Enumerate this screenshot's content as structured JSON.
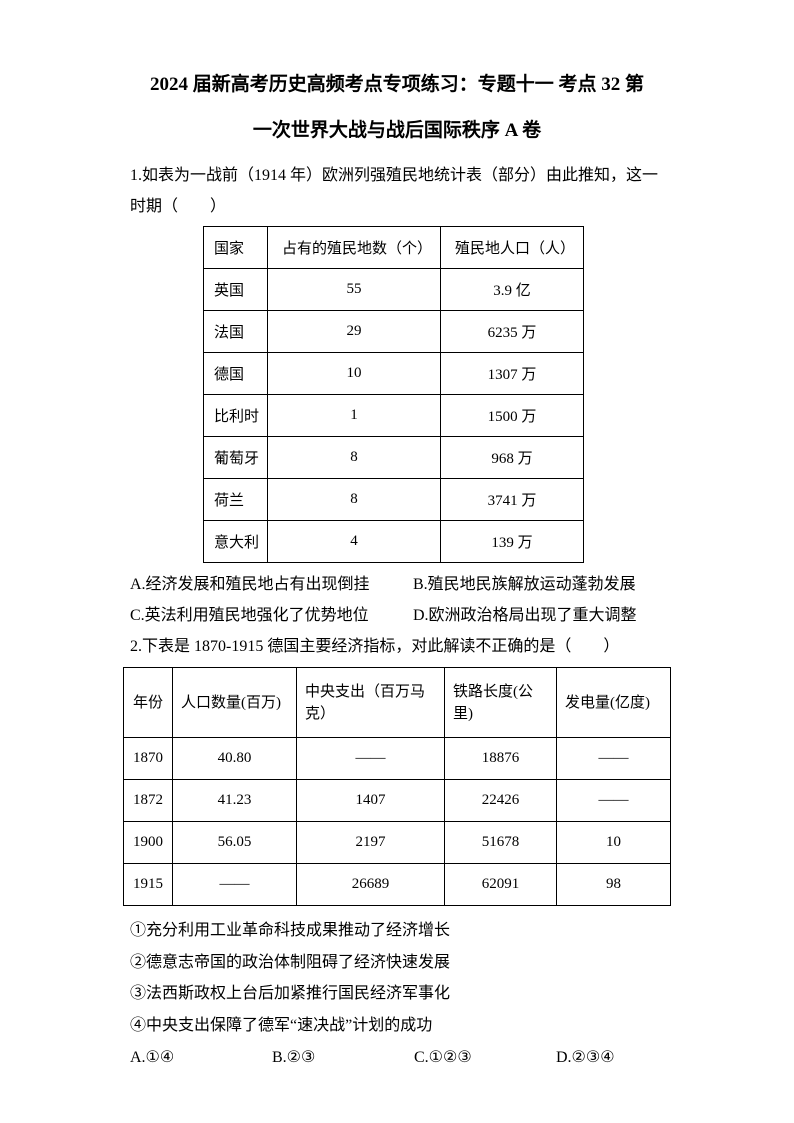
{
  "title": {
    "line1": "2024 届新高考历史高频考点专项练习：专题十一 考点 32 第",
    "line2": "一次世界大战与战后国际秩序 A 卷"
  },
  "q1": {
    "text_line1": "1.如表为一战前（1914 年）欧洲列强殖民地统计表（部分）由此推知，这一",
    "text_line2": "时期（　　）",
    "table": {
      "headers": [
        "国家",
        "占有的殖民地数（个）",
        "殖民地人口（人）"
      ],
      "rows": [
        [
          "英国",
          "55",
          "3.9 亿"
        ],
        [
          "法国",
          "29",
          "6235 万"
        ],
        [
          "德国",
          "10",
          "1307 万"
        ],
        [
          "比利时",
          "1",
          "1500 万"
        ],
        [
          "葡萄牙",
          "8",
          "968 万"
        ],
        [
          "荷兰",
          "8",
          "3741 万"
        ],
        [
          "意大利",
          "4",
          "139 万"
        ]
      ]
    },
    "options": {
      "a": "A.经济发展和殖民地占有出现倒挂",
      "b": "B.殖民地民族解放运动蓬勃发展",
      "c": "C.英法利用殖民地强化了优势地位",
      "d": "D.欧洲政治格局出现了重大调整"
    }
  },
  "q2": {
    "text": "2.下表是 1870-1915 德国主要经济指标，对此解读不正确的是（　　）",
    "table": {
      "headers": [
        "年份",
        "人口数量(百万)",
        "中央支出（百万马克）",
        "铁路长度(公里)",
        "发电量(亿度)"
      ],
      "rows": [
        [
          "1870",
          "40.80",
          "——",
          "18876",
          "——"
        ],
        [
          "1872",
          "41.23",
          "1407",
          "22426",
          "——"
        ],
        [
          "1900",
          "56.05",
          "2197",
          "51678",
          "10"
        ],
        [
          "1915",
          "——",
          "26689",
          "62091",
          "98"
        ]
      ]
    },
    "statements": [
      "①充分利用工业革命科技成果推动了经济增长",
      "②德意志帝国的政治体制阻碍了经济快速发展",
      "③法西斯政权上台后加紧推行国民经济军事化",
      "④中央支出保障了德军“速决战”计划的成功"
    ],
    "options": {
      "a": "A.①④",
      "b": "B.②③",
      "c": "C.①②③",
      "d": "D.②③④"
    }
  },
  "chart_data": [
    {
      "type": "table",
      "title": "一战前（1914年）欧洲列强殖民地统计表（部分）",
      "columns": [
        "国家",
        "占有的殖民地数（个）",
        "殖民地人口（人）"
      ],
      "rows": [
        [
          "英国",
          55,
          "3.9亿"
        ],
        [
          "法国",
          29,
          "6235万"
        ],
        [
          "德国",
          10,
          "1307万"
        ],
        [
          "比利时",
          1,
          "1500万"
        ],
        [
          "葡萄牙",
          8,
          "968万"
        ],
        [
          "荷兰",
          8,
          "3741万"
        ],
        [
          "意大利",
          4,
          "139万"
        ]
      ]
    },
    {
      "type": "table",
      "title": "1870-1915 德国主要经济指标",
      "columns": [
        "年份",
        "人口数量(百万)",
        "中央支出（百万马克）",
        "铁路长度(公里)",
        "发电量(亿度)"
      ],
      "rows": [
        [
          1870,
          40.8,
          null,
          18876,
          null
        ],
        [
          1872,
          41.23,
          1407,
          22426,
          null
        ],
        [
          1900,
          56.05,
          2197,
          51678,
          10
        ],
        [
          1915,
          null,
          26689,
          62091,
          98
        ]
      ]
    }
  ]
}
